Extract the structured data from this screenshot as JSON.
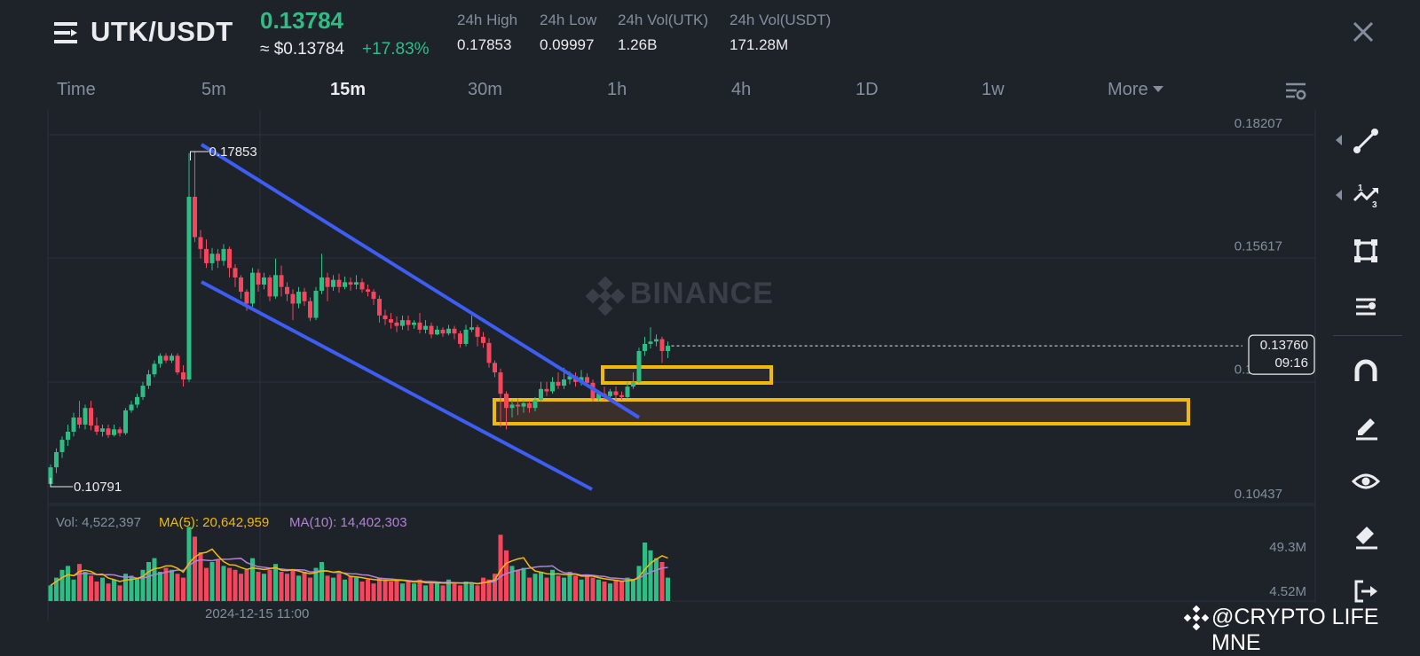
{
  "header": {
    "pair": "UTK/USDT",
    "price": "0.13784",
    "price_usd": "≈ $0.13784",
    "change": "+17.83%",
    "stats": [
      {
        "label": "24h High",
        "value": "0.17853"
      },
      {
        "label": "24h Low",
        "value": "0.09997"
      },
      {
        "label": "24h Vol(UTK)",
        "value": "1.26B"
      },
      {
        "label": "24h Vol(USDT)",
        "value": "171.28M"
      }
    ]
  },
  "tabs": [
    {
      "label": "Time",
      "active": false
    },
    {
      "label": "5m",
      "active": false
    },
    {
      "label": "15m",
      "active": true
    },
    {
      "label": "30m",
      "active": false
    },
    {
      "label": "1h",
      "active": false
    },
    {
      "label": "4h",
      "active": false
    },
    {
      "label": "1D",
      "active": false
    },
    {
      "label": "1w",
      "active": false
    },
    {
      "label": "More",
      "active": false
    }
  ],
  "colors": {
    "up": "#2ebd85",
    "down": "#f6465d",
    "ma5": "#f0b90b",
    "ma10": "#b083d5",
    "channel": "#3d5df5",
    "zone": "#f0b90b",
    "background": "#1e2329"
  },
  "watermark": "BINANCE",
  "credit": "@CRYPTO LIFE MNE",
  "tools": [
    "trend-line-icon",
    "fib-icon",
    "rectangle-icon",
    "indicator-icon",
    "magnet-icon",
    "pencil-icon",
    "eye-icon",
    "eraser-icon",
    "exit-icon"
  ],
  "chart_data": {
    "type": "candlestick",
    "price_axis": {
      "ticks": [
        "0.18207",
        "0.15617",
        "0.13027",
        "0.10437"
      ],
      "range": [
        0.10437,
        0.18207
      ]
    },
    "current_price": {
      "value": 0.1376,
      "label": "0.13760",
      "countdown": "09:16"
    },
    "annotations": {
      "high": {
        "value": 0.17853,
        "label": "0.17853"
      },
      "low": {
        "value": 0.10791,
        "label": "0.10791"
      }
    },
    "x_label": "2024-12-15 11:00",
    "candles": [
      [
        0.1085,
        0.112,
        0.1079,
        0.1126
      ],
      [
        0.112,
        0.1152,
        0.1108,
        0.116
      ],
      [
        0.1152,
        0.1178,
        0.114,
        0.1185
      ],
      [
        0.1178,
        0.1195,
        0.1165,
        0.121
      ],
      [
        0.1195,
        0.1225,
        0.1185,
        0.1235
      ],
      [
        0.1225,
        0.121,
        0.1202,
        0.126
      ],
      [
        0.121,
        0.1245,
        0.12,
        0.1252
      ],
      [
        0.1245,
        0.1208,
        0.1198,
        0.126
      ],
      [
        0.1208,
        0.1195,
        0.1188,
        0.1225
      ],
      [
        0.1195,
        0.1202,
        0.1185,
        0.121
      ],
      [
        0.1202,
        0.1188,
        0.1182,
        0.121
      ],
      [
        0.1188,
        0.12,
        0.1185,
        0.121
      ],
      [
        0.12,
        0.1192,
        0.1185,
        0.1205
      ],
      [
        0.1192,
        0.124,
        0.1188,
        0.1245
      ],
      [
        0.124,
        0.1252,
        0.1235,
        0.126
      ],
      [
        0.1252,
        0.1268,
        0.1245,
        0.1275
      ],
      [
        0.1268,
        0.1292,
        0.1262,
        0.13
      ],
      [
        0.1292,
        0.1316,
        0.1285,
        0.1325
      ],
      [
        0.1316,
        0.1338,
        0.131,
        0.1345
      ],
      [
        0.1338,
        0.1355,
        0.133,
        0.136
      ],
      [
        0.1355,
        0.1345,
        0.134,
        0.136
      ],
      [
        0.1345,
        0.1355,
        0.134,
        0.136
      ],
      [
        0.1355,
        0.132,
        0.1315,
        0.136
      ],
      [
        0.132,
        0.1305,
        0.129,
        0.1335
      ],
      [
        0.1305,
        0.169,
        0.13,
        0.1782
      ],
      [
        0.169,
        0.1605,
        0.1595,
        0.1785
      ],
      [
        0.1605,
        0.158,
        0.156,
        0.162
      ],
      [
        0.158,
        0.155,
        0.154,
        0.16
      ],
      [
        0.155,
        0.157,
        0.1535,
        0.1582
      ],
      [
        0.157,
        0.1555,
        0.154,
        0.158
      ],
      [
        0.1555,
        0.158,
        0.1545,
        0.159
      ],
      [
        0.158,
        0.154,
        0.152,
        0.1585
      ],
      [
        0.154,
        0.152,
        0.15,
        0.1548
      ],
      [
        0.152,
        0.149,
        0.1475,
        0.1525
      ],
      [
        0.149,
        0.1465,
        0.145,
        0.1495
      ],
      [
        0.1465,
        0.153,
        0.1458,
        0.154
      ],
      [
        0.153,
        0.1505,
        0.149,
        0.1538
      ],
      [
        0.1505,
        0.152,
        0.1495,
        0.153
      ],
      [
        0.152,
        0.148,
        0.147,
        0.1525
      ],
      [
        0.148,
        0.1525,
        0.1475,
        0.156
      ],
      [
        0.1525,
        0.15,
        0.148,
        0.1545
      ],
      [
        0.15,
        0.1485,
        0.147,
        0.151
      ],
      [
        0.1485,
        0.1465,
        0.143,
        0.1495
      ],
      [
        0.1465,
        0.149,
        0.1455,
        0.15
      ],
      [
        0.149,
        0.147,
        0.146,
        0.1498
      ],
      [
        0.147,
        0.1435,
        0.1428,
        0.1478
      ],
      [
        0.1435,
        0.1492,
        0.143,
        0.15
      ],
      [
        0.1492,
        0.152,
        0.1485,
        0.157
      ],
      [
        0.152,
        0.15,
        0.147,
        0.153
      ],
      [
        0.15,
        0.1515,
        0.1492,
        0.1525
      ],
      [
        0.1515,
        0.15,
        0.1488,
        0.1528
      ],
      [
        0.15,
        0.151,
        0.1495,
        0.1522
      ],
      [
        0.151,
        0.1505,
        0.1492,
        0.152
      ],
      [
        0.1505,
        0.151,
        0.1495,
        0.1525
      ],
      [
        0.151,
        0.1495,
        0.1488,
        0.1518
      ],
      [
        0.1495,
        0.149,
        0.148,
        0.1505
      ],
      [
        0.149,
        0.1475,
        0.1462,
        0.1495
      ],
      [
        0.1475,
        0.144,
        0.1425,
        0.1482
      ],
      [
        0.144,
        0.1432,
        0.142,
        0.1452
      ],
      [
        0.1432,
        0.1425,
        0.1412,
        0.1445
      ],
      [
        0.1425,
        0.1418,
        0.1405,
        0.1438
      ],
      [
        0.1418,
        0.143,
        0.141,
        0.144
      ],
      [
        0.143,
        0.142,
        0.1408,
        0.144
      ],
      [
        0.142,
        0.1425,
        0.1412,
        0.143
      ],
      [
        0.1425,
        0.141,
        0.1402,
        0.1445
      ],
      [
        0.141,
        0.1418,
        0.1402,
        0.143
      ],
      [
        0.1418,
        0.14,
        0.1392,
        0.1425
      ],
      [
        0.14,
        0.141,
        0.1398,
        0.1418
      ],
      [
        0.141,
        0.1402,
        0.1395,
        0.1415
      ],
      [
        0.1402,
        0.1412,
        0.1398,
        0.142
      ],
      [
        0.1412,
        0.1402,
        0.139,
        0.1418
      ],
      [
        0.1402,
        0.138,
        0.1372,
        0.1408
      ],
      [
        0.138,
        0.141,
        0.1375,
        0.142
      ],
      [
        0.141,
        0.1415,
        0.1405,
        0.144
      ],
      [
        0.1415,
        0.1395,
        0.1375,
        0.142
      ],
      [
        0.1395,
        0.1382,
        0.1372,
        0.1405
      ],
      [
        0.1382,
        0.134,
        0.133,
        0.1392
      ],
      [
        0.134,
        0.132,
        0.131,
        0.1345
      ],
      [
        0.132,
        0.1275,
        0.1205,
        0.1328
      ],
      [
        0.1275,
        0.1245,
        0.12,
        0.128
      ],
      [
        0.1245,
        0.1252,
        0.1225,
        0.1262
      ],
      [
        0.1252,
        0.1248,
        0.123,
        0.1265
      ],
      [
        0.1248,
        0.1255,
        0.1235,
        0.1262
      ],
      [
        0.1255,
        0.1245,
        0.1235,
        0.126
      ],
      [
        0.1245,
        0.1262,
        0.1238,
        0.1268
      ],
      [
        0.1262,
        0.1285,
        0.1258,
        0.13
      ],
      [
        0.1285,
        0.128,
        0.127,
        0.13
      ],
      [
        0.128,
        0.13,
        0.1275,
        0.131
      ],
      [
        0.13,
        0.1292,
        0.1285,
        0.132
      ],
      [
        0.1292,
        0.1305,
        0.1285,
        0.133
      ],
      [
        0.1305,
        0.1312,
        0.1295,
        0.1322
      ],
      [
        0.1312,
        0.13,
        0.129,
        0.132
      ],
      [
        0.13,
        0.131,
        0.1292,
        0.1325
      ],
      [
        0.131,
        0.1298,
        0.129,
        0.1318
      ],
      [
        0.1298,
        0.1265,
        0.1258,
        0.1305
      ],
      [
        0.1265,
        0.1275,
        0.126,
        0.1282
      ],
      [
        0.1275,
        0.127,
        0.1262,
        0.129
      ],
      [
        0.127,
        0.128,
        0.1265,
        0.1285
      ],
      [
        0.128,
        0.1272,
        0.1262,
        0.129
      ],
      [
        0.1272,
        0.1268,
        0.1262,
        0.128
      ],
      [
        0.1268,
        0.129,
        0.1265,
        0.13
      ],
      [
        0.129,
        0.13,
        0.1285,
        0.132
      ],
      [
        0.13,
        0.1365,
        0.1298,
        0.1372
      ],
      [
        0.1365,
        0.138,
        0.1355,
        0.1395
      ],
      [
        0.138,
        0.1385,
        0.137,
        0.1415
      ],
      [
        0.1385,
        0.139,
        0.1375,
        0.14
      ],
      [
        0.139,
        0.1365,
        0.134,
        0.1395
      ],
      [
        0.1365,
        0.1376,
        0.135,
        0.1385
      ]
    ],
    "volume": {
      "axis_ticks": [
        "49.3M",
        "4.52M"
      ],
      "legend": {
        "vol": "Vol: 4,522,397",
        "ma5": "MA(5): 20,642,959",
        "ma10": "MA(10): 14,402,303"
      },
      "values": [
        8,
        12,
        16,
        18,
        11,
        19,
        15,
        13,
        10,
        12,
        9,
        11,
        8,
        14,
        13,
        12,
        16,
        20,
        22,
        15,
        17,
        16,
        14,
        12,
        38,
        33,
        25,
        17,
        20,
        21,
        18,
        17,
        16,
        14,
        16,
        22,
        15,
        14,
        16,
        19,
        15,
        14,
        16,
        13,
        15,
        12,
        17,
        20,
        13,
        12,
        14,
        11,
        13,
        12,
        10,
        11,
        9,
        12,
        11,
        10,
        11,
        9,
        10,
        9,
        11,
        8,
        9,
        10,
        8,
        11,
        9,
        8,
        10,
        9,
        8,
        12,
        11,
        14,
        34,
        26,
        18,
        16,
        17,
        12,
        14,
        15,
        12,
        16,
        13,
        12,
        15,
        13,
        11,
        13,
        12,
        11,
        10,
        9,
        11,
        10,
        12,
        11,
        18,
        30,
        26,
        22,
        20,
        12
      ]
    }
  }
}
